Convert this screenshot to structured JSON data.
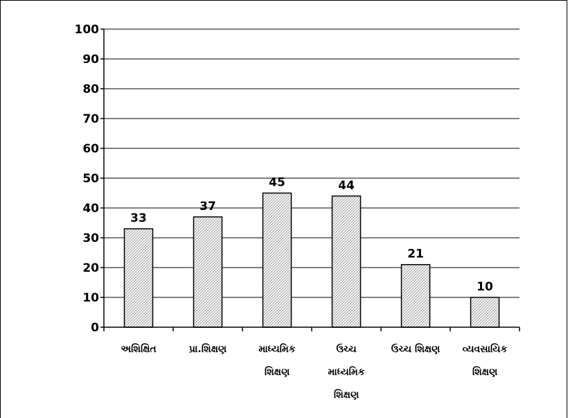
{
  "chart_data": {
    "type": "bar",
    "categories": [
      [
        "અશિક્ષિત"
      ],
      [
        "પ્રા.શિક્ષણ"
      ],
      [
        "માધ્યમિક",
        "શિક્ષણ"
      ],
      [
        "ઉચ્ચ",
        "માધ્યમિક",
        "શિક્ષણ"
      ],
      [
        "ઉચ્ચ શિક્ષણ"
      ],
      [
        "વ્યવસાયિક",
        "શિક્ષણ"
      ]
    ],
    "values": [
      33,
      37,
      45,
      44,
      21,
      10
    ],
    "ylim": [
      0,
      100
    ],
    "yticks": [
      0,
      10,
      20,
      30,
      40,
      50,
      60,
      70,
      80,
      90,
      100
    ],
    "grid": true,
    "legend": "none",
    "bar_fill": "#d8d8d8",
    "bar_pattern": "cross-hatch"
  }
}
